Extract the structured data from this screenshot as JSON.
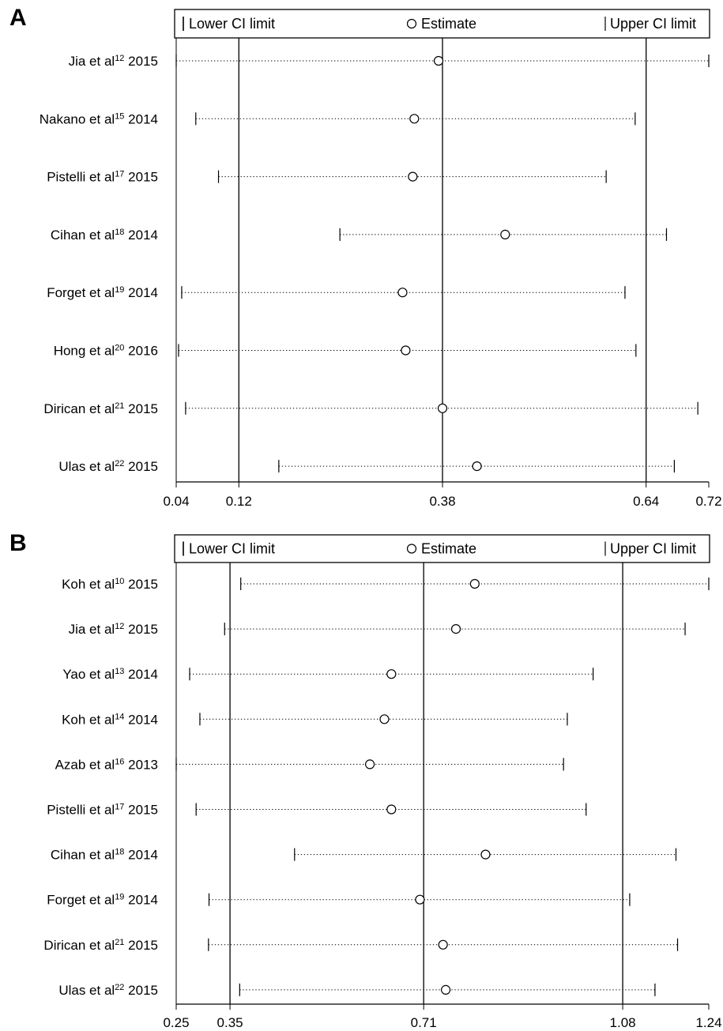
{
  "chart_data": [
    {
      "type": "forest",
      "panel": "A",
      "legend": {
        "lower": "Lower CI limit",
        "estimate": "Estimate",
        "upper": "Upper CI limit"
      },
      "xlim": [
        0.04,
        0.72
      ],
      "xticks": [
        0.04,
        0.12,
        0.38,
        0.64,
        0.72
      ],
      "xtick_labels": [
        "0.04",
        "0.12",
        "0.38",
        "0.64",
        "0.72"
      ],
      "reference_lines": [
        0.12,
        0.38,
        0.64
      ],
      "studies": [
        {
          "name": "Jia et al",
          "ref": "12",
          "year": "2015",
          "lower": 0.04,
          "estimate": 0.375,
          "upper": 0.72
        },
        {
          "name": "Nakano et al",
          "ref": "15",
          "year": "2014",
          "lower": 0.065,
          "estimate": 0.344,
          "upper": 0.626
        },
        {
          "name": "Pistelli et al",
          "ref": "17",
          "year": "2015",
          "lower": 0.094,
          "estimate": 0.342,
          "upper": 0.589
        },
        {
          "name": "Cihan et al",
          "ref": "18",
          "year": "2014",
          "lower": 0.249,
          "estimate": 0.46,
          "upper": 0.666
        },
        {
          "name": "Forget et al",
          "ref": "19",
          "year": "2014",
          "lower": 0.047,
          "estimate": 0.329,
          "upper": 0.613
        },
        {
          "name": "Hong et al",
          "ref": "20",
          "year": "2016",
          "lower": 0.043,
          "estimate": 0.333,
          "upper": 0.627
        },
        {
          "name": "Dirican et al",
          "ref": "21",
          "year": "2015",
          "lower": 0.052,
          "estimate": 0.38,
          "upper": 0.706
        },
        {
          "name": "Ulas et al",
          "ref": "22",
          "year": "2015",
          "lower": 0.171,
          "estimate": 0.424,
          "upper": 0.676
        }
      ]
    },
    {
      "type": "forest",
      "panel": "B",
      "legend": {
        "lower": "Lower CI limit",
        "estimate": "Estimate",
        "upper": "Upper CI limit"
      },
      "xlim": [
        0.25,
        1.24
      ],
      "xticks": [
        0.25,
        0.35,
        0.71,
        1.08,
        1.24
      ],
      "xtick_labels": [
        "0.25",
        "0.35",
        "0.71",
        "1.08",
        "1.24"
      ],
      "reference_lines": [
        0.35,
        0.71,
        1.08
      ],
      "studies": [
        {
          "name": "Koh et al",
          "ref": "10",
          "year": "2015",
          "lower": 0.37,
          "estimate": 0.805,
          "upper": 1.24
        },
        {
          "name": "Jia et al",
          "ref": "12",
          "year": "2015",
          "lower": 0.34,
          "estimate": 0.77,
          "upper": 1.196
        },
        {
          "name": "Yao et al",
          "ref": "13",
          "year": "2014",
          "lower": 0.275,
          "estimate": 0.65,
          "upper": 1.025
        },
        {
          "name": "Koh et al",
          "ref": "14",
          "year": "2014",
          "lower": 0.294,
          "estimate": 0.637,
          "upper": 0.977
        },
        {
          "name": "Azab et al",
          "ref": "16",
          "year": "2013",
          "lower": 0.25,
          "estimate": 0.61,
          "upper": 0.97
        },
        {
          "name": "Pistelli et al",
          "ref": "17",
          "year": "2015",
          "lower": 0.287,
          "estimate": 0.65,
          "upper": 1.012
        },
        {
          "name": "Cihan et al",
          "ref": "18",
          "year": "2014",
          "lower": 0.47,
          "estimate": 0.825,
          "upper": 1.179
        },
        {
          "name": "Forget et al",
          "ref": "19",
          "year": "2014",
          "lower": 0.311,
          "estimate": 0.703,
          "upper": 1.093
        },
        {
          "name": "Dirican et al",
          "ref": "21",
          "year": "2015",
          "lower": 0.31,
          "estimate": 0.746,
          "upper": 1.182
        },
        {
          "name": "Ulas et al",
          "ref": "22",
          "year": "2015",
          "lower": 0.368,
          "estimate": 0.751,
          "upper": 1.14
        }
      ]
    }
  ]
}
